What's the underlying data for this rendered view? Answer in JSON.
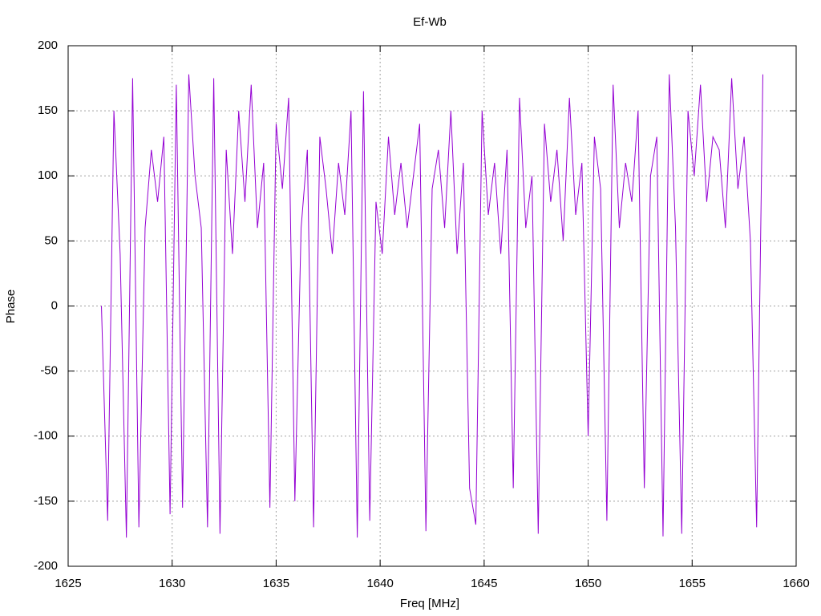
{
  "chart_data": {
    "type": "line",
    "title": "Ef-Wb",
    "x_label": "Freq [MHz]",
    "y_label": "Phase",
    "x": [
      1626.6,
      1626.9,
      1627.2,
      1627.5,
      1627.8,
      1628.1,
      1628.4,
      1628.7,
      1629,
      1629.3,
      1629.6,
      1629.9,
      1630.2,
      1630.5,
      1630.8,
      1631.1,
      1631.4,
      1631.7,
      1632,
      1632.3,
      1632.6,
      1632.9,
      1633.2,
      1633.5,
      1633.8,
      1634.1,
      1634.4,
      1634.7,
      1635,
      1635.3,
      1635.6,
      1635.9,
      1636.2,
      1636.5,
      1636.8,
      1637.1,
      1637.4,
      1637.7,
      1638,
      1638.3,
      1638.6,
      1638.9,
      1639.2,
      1639.5,
      1639.8,
      1640.1,
      1640.4,
      1640.7,
      1641,
      1641.3,
      1641.6,
      1641.9,
      1642.2,
      1642.5,
      1642.8,
      1643.1,
      1643.4,
      1643.7,
      1644,
      1644.3,
      1644.6,
      1644.9,
      1645.2,
      1645.5,
      1645.8,
      1646.1,
      1646.4,
      1646.7,
      1647,
      1647.3,
      1647.6,
      1647.9,
      1648.2,
      1648.5,
      1648.8,
      1649.1,
      1649.4,
      1649.7,
      1650,
      1650.3,
      1650.6,
      1650.9,
      1651.2,
      1651.5,
      1651.8,
      1652.1,
      1652.4,
      1652.7,
      1653,
      1653.3,
      1653.6,
      1653.9,
      1654.2,
      1654.5,
      1654.8,
      1655.1,
      1655.4,
      1655.7,
      1656,
      1656.3,
      1656.6,
      1656.9,
      1657.2,
      1657.5,
      1657.8,
      1658.1,
      1658.4
    ],
    "series": [
      {
        "color": "#9400d3",
        "values": [
          0,
          -165,
          150,
          40,
          -178,
          175,
          -170,
          60,
          120,
          80,
          130,
          -160,
          170,
          -155,
          178,
          100,
          60,
          -170,
          175,
          -175,
          120,
          40,
          150,
          80,
          170,
          60,
          110,
          -155,
          140,
          90,
          160,
          -150,
          60,
          120,
          -170,
          130,
          90,
          40,
          110,
          70,
          150,
          -178,
          165,
          -165,
          80,
          40,
          130,
          70,
          110,
          60,
          100,
          140,
          -173,
          90,
          120,
          60,
          150,
          40,
          110,
          -140,
          -168,
          150,
          70,
          110,
          40,
          120,
          -140,
          160,
          60,
          100,
          -175,
          140,
          80,
          120,
          50,
          160,
          70,
          110,
          -100,
          130,
          90,
          -165,
          170,
          60,
          110,
          80,
          150,
          -140,
          100,
          130,
          -177,
          178,
          60,
          -175,
          150,
          100,
          170,
          80,
          130,
          120,
          60,
          175,
          90,
          130,
          50,
          -170,
          178
        ]
      }
    ],
    "xlim": [
      1625,
      1660
    ],
    "ylim": [
      -200,
      200
    ],
    "xticks": [
      1625,
      1630,
      1635,
      1640,
      1645,
      1650,
      1655,
      1660
    ],
    "yticks": [
      -200,
      -150,
      -100,
      -50,
      0,
      50,
      100,
      150,
      200
    ],
    "grid": true
  }
}
